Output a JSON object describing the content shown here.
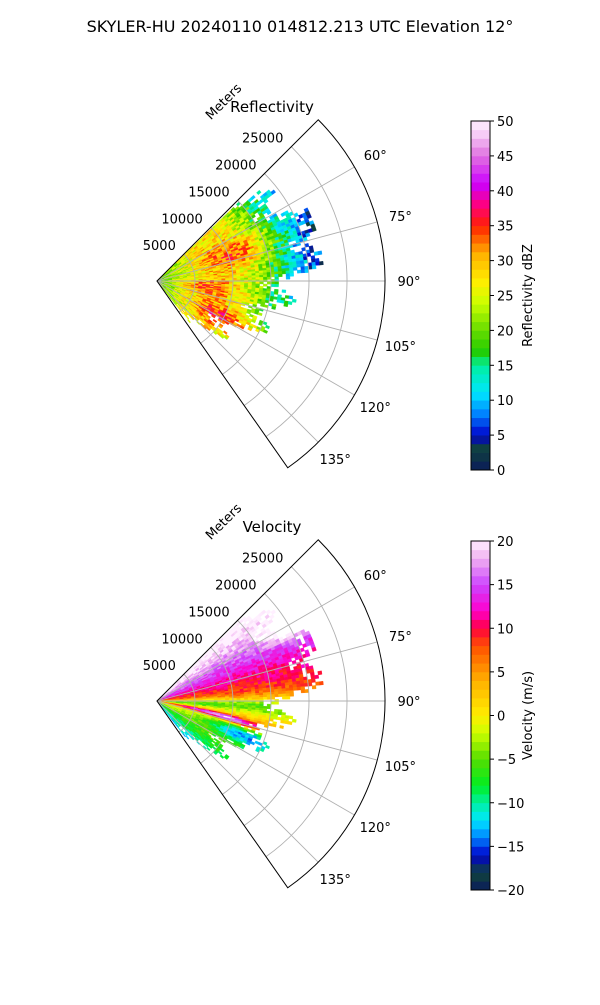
{
  "figure": {
    "title": "SKYLER-HU  20240110  014812.213 UTC Elevation 12°"
  },
  "colors": {
    "grid": "#b0b0b0",
    "axis": "#000000",
    "background": "#ffffff"
  },
  "chart_data": [
    {
      "type": "heatmap",
      "subtype": "polar-sector",
      "title": "Reflectivity",
      "radial_axis_label": "Meters",
      "radial_ticks": [
        5000,
        10000,
        15000,
        20000,
        25000
      ],
      "radial_tick_labels": [
        "5000",
        "10000",
        "15000",
        "20000",
        "25000"
      ],
      "radial_range": [
        0,
        30000
      ],
      "azimuth_range_deg": [
        45,
        145
      ],
      "azimuth_ticks_deg": [
        60,
        75,
        90,
        105,
        120,
        135
      ],
      "azimuth_tick_labels": [
        "60°",
        "75°",
        "90°",
        "105°",
        "120°",
        "135°"
      ],
      "data_extent_m": 22000,
      "colorbar": {
        "label": "Reflectivity dBZ",
        "range": [
          0,
          50
        ],
        "ticks": [
          0,
          5,
          10,
          15,
          20,
          25,
          30,
          35,
          40,
          45,
          50
        ],
        "tick_labels": [
          "0",
          "5",
          "10",
          "15",
          "20",
          "25",
          "30",
          "35",
          "40",
          "45",
          "50"
        ],
        "stops": [
          {
            "v": 0,
            "c": "#0b1a5c"
          },
          {
            "v": 3,
            "c": "#10443a"
          },
          {
            "v": 5,
            "c": "#0000cc"
          },
          {
            "v": 8,
            "c": "#0080ff"
          },
          {
            "v": 11,
            "c": "#00e6ff"
          },
          {
            "v": 15,
            "c": "#00f0a0"
          },
          {
            "v": 17,
            "c": "#22cc00"
          },
          {
            "v": 20,
            "c": "#66dd00"
          },
          {
            "v": 24,
            "c": "#ccff00"
          },
          {
            "v": 27,
            "c": "#ffee00"
          },
          {
            "v": 31,
            "c": "#ffb000"
          },
          {
            "v": 35,
            "c": "#ff2000"
          },
          {
            "v": 38,
            "c": "#ff0080"
          },
          {
            "v": 41,
            "c": "#cc00ff"
          },
          {
            "v": 45,
            "c": "#e070e0"
          },
          {
            "v": 48,
            "c": "#f5c8f5"
          },
          {
            "v": 50,
            "c": "#fff0ff"
          }
        ]
      }
    },
    {
      "type": "heatmap",
      "subtype": "polar-sector",
      "title": "Velocity",
      "radial_axis_label": "Meters",
      "radial_ticks": [
        5000,
        10000,
        15000,
        20000,
        25000
      ],
      "radial_tick_labels": [
        "5000",
        "10000",
        "15000",
        "20000",
        "25000"
      ],
      "radial_range": [
        0,
        30000
      ],
      "azimuth_range_deg": [
        45,
        145
      ],
      "azimuth_ticks_deg": [
        60,
        75,
        90,
        105,
        120,
        135
      ],
      "azimuth_tick_labels": [
        "60°",
        "75°",
        "90°",
        "105°",
        "120°",
        "135°"
      ],
      "data_extent_m": 22000,
      "colorbar": {
        "label": "Velocity (m/s)",
        "range": [
          -20,
          20
        ],
        "ticks": [
          -20,
          -15,
          -10,
          -5,
          0,
          5,
          10,
          15,
          20
        ],
        "tick_labels": [
          "−20",
          "−15",
          "−10",
          "−5",
          "0",
          "5",
          "10",
          "15",
          "20"
        ],
        "stops": [
          {
            "v": -20,
            "c": "#0b1a5c"
          },
          {
            "v": -18,
            "c": "#10443a"
          },
          {
            "v": -16,
            "c": "#0000cc"
          },
          {
            "v": -14,
            "c": "#0080ff"
          },
          {
            "v": -12,
            "c": "#00e6ff"
          },
          {
            "v": -10,
            "c": "#00f0a0"
          },
          {
            "v": -8,
            "c": "#00ee22"
          },
          {
            "v": -5,
            "c": "#55dd00"
          },
          {
            "v": -2,
            "c": "#ccff00"
          },
          {
            "v": 0,
            "c": "#ffee00"
          },
          {
            "v": 4,
            "c": "#ffb000"
          },
          {
            "v": 8,
            "c": "#ff5000"
          },
          {
            "v": 10,
            "c": "#ff0040"
          },
          {
            "v": 12,
            "c": "#ff00cc"
          },
          {
            "v": 15,
            "c": "#cc44ff"
          },
          {
            "v": 18,
            "c": "#f0b0f0"
          },
          {
            "v": 20,
            "c": "#fff0ff"
          }
        ]
      }
    }
  ]
}
